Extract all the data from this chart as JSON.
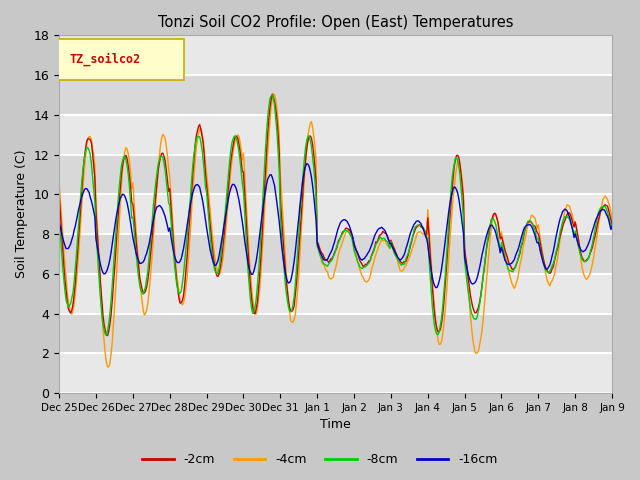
{
  "title": "Tonzi Soil CO2 Profile: Open (East) Temperatures",
  "ylabel": "Soil Temperature (C)",
  "xlabel": "Time",
  "legend_label": "TZ_soilco2",
  "series_labels": [
    "-2cm",
    "-4cm",
    "-8cm",
    "-16cm"
  ],
  "series_colors": [
    "#cc0000",
    "#ff9900",
    "#00cc00",
    "#0000cc"
  ],
  "ylim": [
    0,
    18
  ],
  "fig_facecolor": "#c8c8c8",
  "ax_facecolor": "#e0e0e0",
  "xtick_labels": [
    "Dec 25",
    "Dec 26",
    "Dec 27",
    "Dec 28",
    "Dec 29",
    "Dec 30",
    "Dec 31",
    "Jan 1",
    "Jan 2",
    "Jan 3",
    "Jan 4",
    "Jan 5",
    "Jan 6",
    "Jan 7",
    "Jan 8",
    "Jan 9"
  ],
  "legend_box_facecolor": "#ffffcc",
  "legend_box_edgecolor": "#ccaa00"
}
